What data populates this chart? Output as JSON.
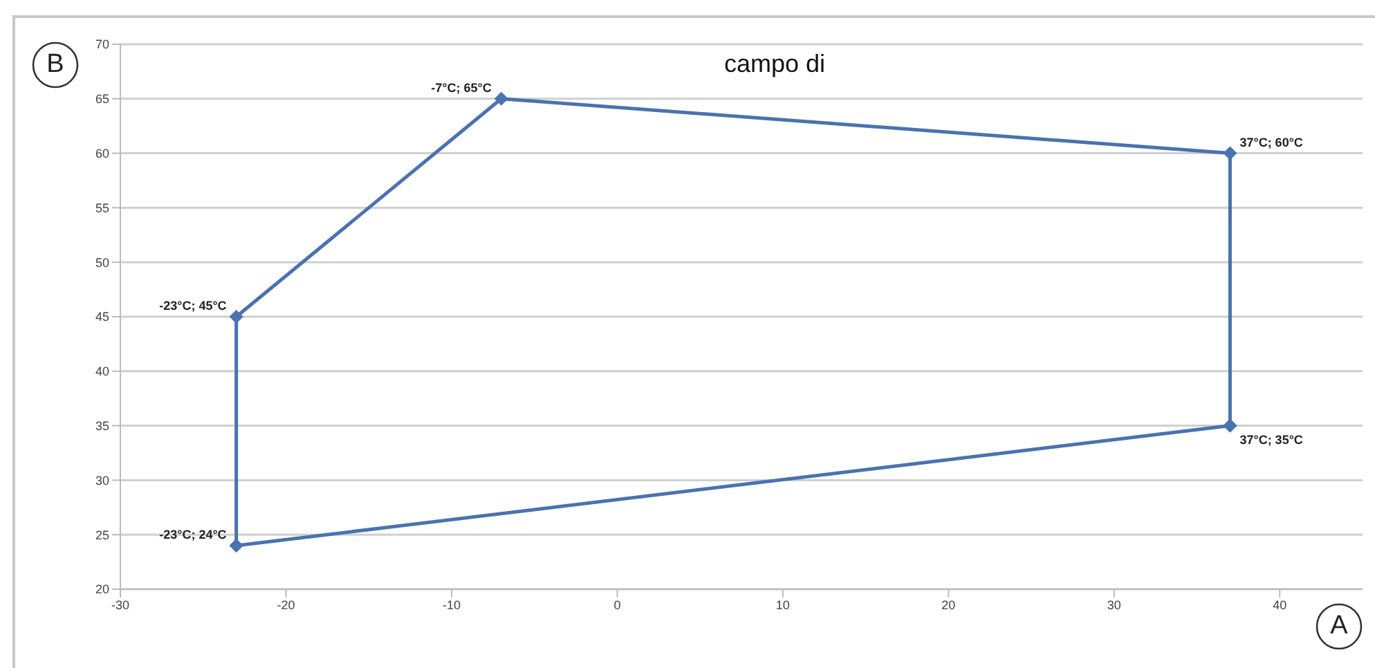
{
  "chart_data": {
    "type": "line",
    "title": "campo di",
    "xlabel": "A",
    "ylabel": "B",
    "series": [
      {
        "color": "#4a72b0",
        "x": [
          -23,
          -23,
          -7,
          37,
          37
        ],
        "values": [
          24,
          45,
          65,
          60,
          35
        ],
        "value_labels": [
          "-23°C; 24°C",
          "-23°C; 45°C",
          "-7°C; 65°C",
          "37°C; 60°C",
          "37°C; 35°C"
        ]
      },
      {
        "color": "#4a72b0",
        "x": [
          -23,
          37
        ],
        "values": [
          24,
          35
        ]
      }
    ],
    "xlim": [
      -30,
      45
    ],
    "xticks": [
      -30,
      -20,
      -10,
      0,
      10,
      20,
      30,
      40
    ],
    "ylim": [
      20,
      70
    ],
    "yticks": [
      20,
      25,
      30,
      35,
      40,
      45,
      50,
      55,
      60,
      65,
      70
    ],
    "grid": "y",
    "marker": "diamond",
    "line_style": "solid"
  }
}
